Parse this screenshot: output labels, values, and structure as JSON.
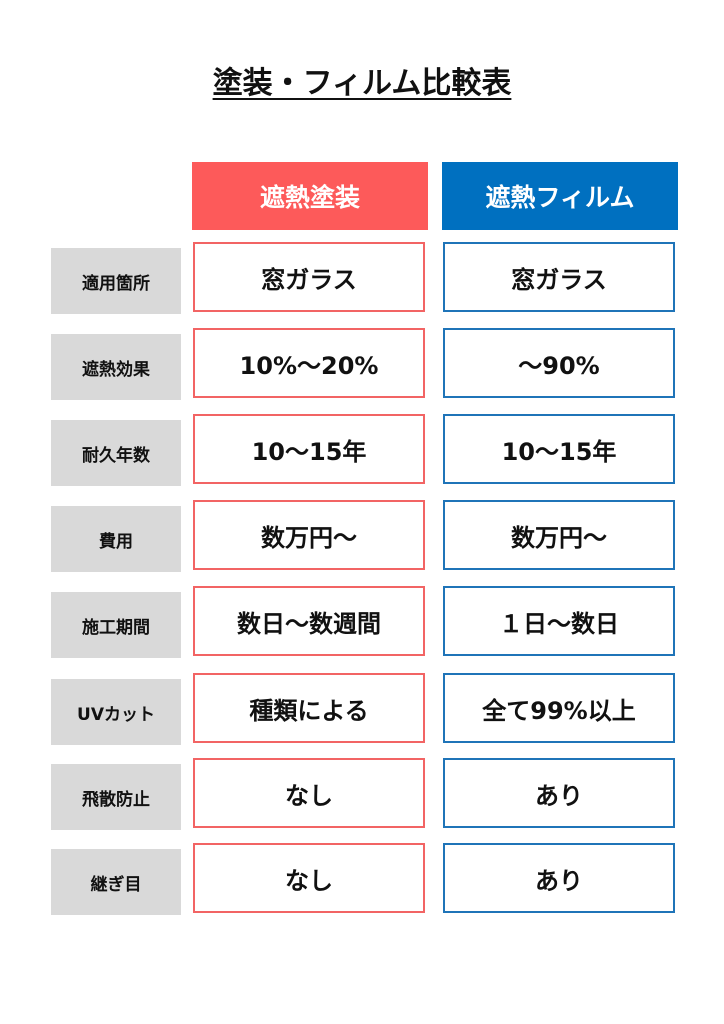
{
  "title": "塗装・フィルム比較表",
  "columns": {
    "paint": "遮熱塗装",
    "film": "遮熱フィルム"
  },
  "colors": {
    "paint": "#fd5a5a",
    "film": "#0070c0",
    "label_bg": "#d9d9d9"
  },
  "rows": [
    {
      "label": "適用箇所",
      "paint": "窓ガラス",
      "film": "窓ガラス"
    },
    {
      "label": "遮熱効果",
      "paint": "10%〜20%",
      "film": "〜90%"
    },
    {
      "label": "耐久年数",
      "paint": "10〜15年",
      "film": "10〜15年"
    },
    {
      "label": "費用",
      "paint": "数万円〜",
      "film": "数万円〜"
    },
    {
      "label": "施工期間",
      "paint": "数日〜数週間",
      "film": "１日〜数日"
    },
    {
      "label": "UVカット",
      "paint": "種類による",
      "film": "全て99%以上"
    },
    {
      "label": "飛散防止",
      "paint": "なし",
      "film": "あり"
    },
    {
      "label": "継ぎ目",
      "paint": "なし",
      "film": "あり"
    }
  ]
}
